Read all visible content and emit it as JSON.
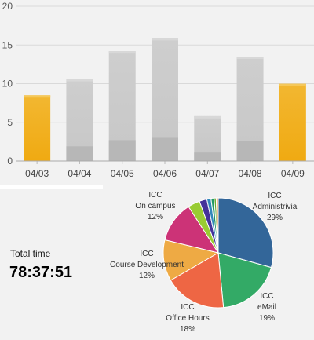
{
  "colors": {
    "background": "#f2f2f2",
    "bar_highlight": "#f0aa12",
    "bar_normal": "#c7c7c7",
    "bar_base": "#b7b7b7",
    "gridline": "#d9d9d9"
  },
  "total": {
    "label": "Total time",
    "value": "78:37:51"
  },
  "chart_data": [
    {
      "type": "bar",
      "categories": [
        "04/03",
        "04/04",
        "04/05",
        "04/06",
        "04/07",
        "04/08",
        "04/09"
      ],
      "series": [
        {
          "values": [
            8.5,
            10.6,
            14.2,
            15.9,
            5.8,
            13.5,
            10.0
          ]
        }
      ],
      "base_values": [
        0,
        1.9,
        2.7,
        3.0,
        1.1,
        2.6,
        0
      ],
      "highlighted": [
        true,
        false,
        false,
        false,
        false,
        false,
        true
      ],
      "y_ticks": [
        0,
        5,
        10,
        15,
        20
      ],
      "ylim": [
        0,
        20
      ],
      "grid": true
    },
    {
      "type": "pie",
      "slices": [
        {
          "line1": "ICC",
          "line2": "Administrivia",
          "pct_label": "29%",
          "value": 29,
          "color": "#336699"
        },
        {
          "line1": "ICC",
          "line2": "eMail",
          "pct_label": "19%",
          "value": 19,
          "color": "#33aa66"
        },
        {
          "line1": "ICC",
          "line2": "Office Hours",
          "pct_label": "18%",
          "value": 18,
          "color": "#ee6644"
        },
        {
          "line1": "ICC",
          "line2": "Course Development",
          "pct_label": "12%",
          "value": 12,
          "color": "#eeaa44"
        },
        {
          "line1": "ICC",
          "line2": "On campus",
          "pct_label": "12%",
          "value": 12,
          "color": "#cc3377"
        },
        {
          "value": 3.5,
          "color": "#99cc33"
        },
        {
          "value": 2.2,
          "color": "#443399"
        },
        {
          "value": 1.2,
          "color": "#3388bb"
        },
        {
          "value": 0.9,
          "color": "#229966"
        },
        {
          "value": 0.6,
          "color": "#66aa33"
        },
        {
          "value": 0.6,
          "color": "#ee8833"
        }
      ]
    }
  ]
}
